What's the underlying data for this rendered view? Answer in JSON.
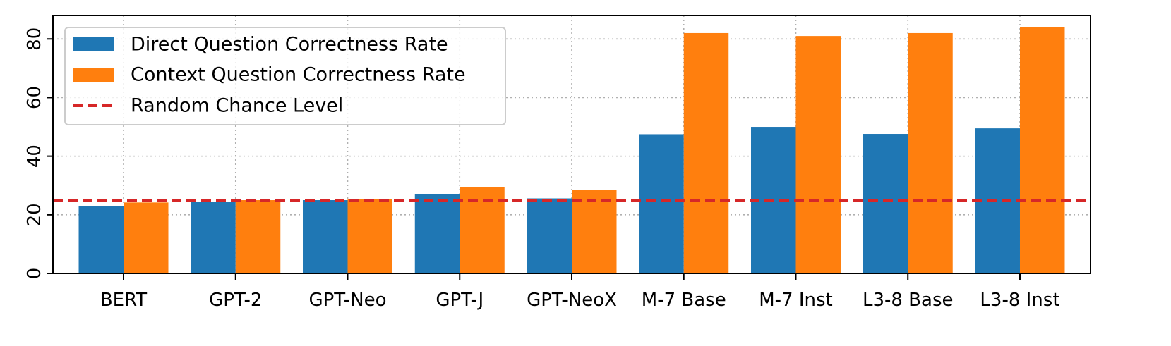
{
  "chart_data": {
    "type": "bar",
    "title": "",
    "xlabel": "",
    "ylabel": "",
    "categories": [
      "BERT",
      "GPT-2",
      "GPT-Neo",
      "GPT-J",
      "GPT-NeoX",
      "M-7 Base",
      "M-7 Inst",
      "L3-8 Base",
      "L3-8 Inst"
    ],
    "series": [
      {
        "name": "Direct Question Correctness Rate",
        "color": "#1f77b4",
        "values": [
          23,
          24.3,
          25,
          27,
          25.6,
          47.5,
          50,
          47.6,
          49.5
        ]
      },
      {
        "name": "Context Question Correctness Rate",
        "color": "#ff7f0e",
        "values": [
          24.2,
          25,
          25.3,
          29.5,
          28.5,
          82,
          81,
          82,
          84
        ]
      }
    ],
    "reference_line": {
      "name": "Random Chance Level",
      "value": 25,
      "color": "#d62728",
      "style": "dashed"
    },
    "ylim": [
      0,
      88
    ],
    "yticks": [
      0,
      20,
      40,
      60,
      80
    ],
    "grid": true,
    "legend_position": "top-left"
  }
}
